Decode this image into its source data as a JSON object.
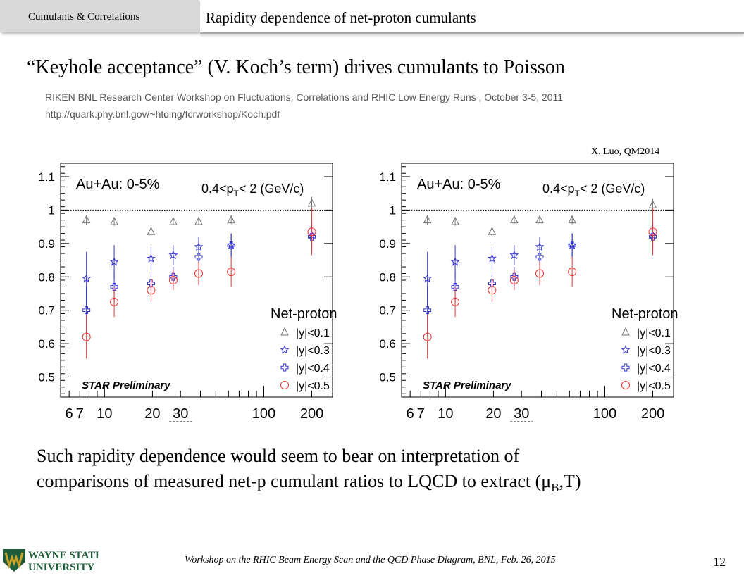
{
  "header": {
    "section_tab": "Cumulants & Correlations",
    "title": "Rapidity dependence of net-proton cumulants"
  },
  "headline": "“Keyhole acceptance” (V. Koch’s term) drives cumulants to Poisson",
  "reference": {
    "line1": "RIKEN BNL Research Center Workshop on Fluctuations, Correlations and RHIC Low Energy Runs , October 3-5, 2011",
    "line2": "http://quark.phy.bnl.gov/~htding/fcrworkshop/Koch.pdf"
  },
  "credit": "X. Luo, QM2014",
  "body_text": {
    "line1": "Such rapidity dependence would seem to bear on interpretation of",
    "line2_prefix": "comparisons of measured net-p cumulant ratios to LQCD to extract (μ",
    "line2_sub": "B",
    "line2_suffix": ",T)"
  },
  "footer": {
    "text": "Workshop on the RHIC Beam Energy Scan and the QCD Phase Diagram, BNL, Feb. 26, 2015",
    "page_number": "12"
  },
  "logo": {
    "line1": "WAYNE STATE",
    "line2": "UNIVERSITY",
    "brand_green": "#1f5c3a",
    "brand_gold": "#c9a227"
  },
  "chart_data": [
    {
      "type": "scatter",
      "x_scale": "log",
      "xlim": [
        5.3,
        270
      ],
      "ylim": [
        0.44,
        1.14
      ],
      "x_ticks": [
        6,
        7,
        10,
        20,
        30,
        100,
        200
      ],
      "x_tick_labels": [
        "6",
        "7",
        "10",
        "20",
        "30",
        "100",
        "200"
      ],
      "y_ticks": [
        0.5,
        0.6,
        0.7,
        0.8,
        0.9,
        1.0,
        1.1
      ],
      "y_tick_labels": [
        "0.5",
        "0.6",
        "0.7",
        "0.8",
        "0.9",
        "1",
        "1.1"
      ],
      "reference_line": 1.0,
      "annotation_left": "Au+Au: 0-5%",
      "annotation_right_base": "0.4<p",
      "annotation_right_sub": "T",
      "annotation_right_tail": "< 2 (GeV/c)",
      "legend_title": "Net-proton",
      "watermark": "STAR Preliminary",
      "legend_position": "bottom-right",
      "series": [
        {
          "name": "|y|<0.1",
          "marker": "triangle",
          "color": "#777777",
          "x": [
            7.7,
            11.5,
            19.6,
            27,
            39,
            62.4,
            200
          ],
          "y": [
            0.97,
            0.965,
            0.935,
            0.965,
            0.965,
            0.97,
            1.02
          ],
          "err": [
            0.015,
            0.012,
            0.012,
            0.01,
            0.01,
            0.012,
            0.02
          ]
        },
        {
          "name": "|y|<0.3",
          "marker": "star",
          "color": "#3333cc",
          "x": [
            7.7,
            11.5,
            19.6,
            27,
            39,
            62.4,
            200
          ],
          "y": [
            0.795,
            0.845,
            0.855,
            0.865,
            0.89,
            0.895,
            0.925
          ],
          "err": [
            0.08,
            0.05,
            0.035,
            0.03,
            0.03,
            0.035,
            0.04
          ]
        },
        {
          "name": "|y|<0.4",
          "marker": "cross",
          "color": "#3333cc",
          "x": [
            7.7,
            11.5,
            19.6,
            27,
            39,
            62.4,
            200
          ],
          "y": [
            0.7,
            0.77,
            0.78,
            0.8,
            0.86,
            0.895,
            0.92
          ],
          "err": [
            0.07,
            0.045,
            0.035,
            0.03,
            0.03,
            0.035,
            0.04
          ]
        },
        {
          "name": "|y|<0.5",
          "marker": "circle",
          "color": "#ee3333",
          "x": [
            7.7,
            11.5,
            19.6,
            27,
            39,
            62.4,
            200
          ],
          "y": [
            0.62,
            0.725,
            0.76,
            0.79,
            0.81,
            0.815,
            0.935
          ],
          "err": [
            0.065,
            0.045,
            0.035,
            0.03,
            0.035,
            0.045,
            0.07
          ]
        }
      ]
    },
    {
      "type": "scatter",
      "x_scale": "log",
      "xlim": [
        5.3,
        270
      ],
      "ylim": [
        0.44,
        1.14
      ],
      "x_ticks": [
        6,
        7,
        10,
        20,
        30,
        100,
        200
      ],
      "x_tick_labels": [
        "6",
        "7",
        "10",
        "20",
        "30",
        "100",
        "200"
      ],
      "y_ticks": [
        0.5,
        0.6,
        0.7,
        0.8,
        0.9,
        1.0,
        1.1
      ],
      "y_tick_labels": [
        "0.5",
        "0.6",
        "0.7",
        "0.8",
        "0.9",
        "1",
        "1.1"
      ],
      "reference_line": 1.0,
      "annotation_left": "Au+Au: 0-5%",
      "annotation_right_base": "0.4<p",
      "annotation_right_sub": "T",
      "annotation_right_tail": "< 2 (GeV/c)",
      "legend_title": "Net-proton",
      "watermark": "STAR Preliminary",
      "legend_position": "bottom-right",
      "series": [
        {
          "name": "|y|<0.1",
          "marker": "triangle",
          "color": "#777777",
          "x": [
            7.7,
            11.5,
            19.6,
            27,
            39,
            62.4,
            200
          ],
          "y": [
            0.97,
            0.965,
            0.935,
            0.97,
            0.97,
            0.97,
            1.015
          ],
          "err": [
            0.015,
            0.012,
            0.012,
            0.01,
            0.01,
            0.012,
            0.02
          ]
        },
        {
          "name": "|y|<0.3",
          "marker": "star",
          "color": "#3333cc",
          "x": [
            7.7,
            11.5,
            19.6,
            27,
            39,
            62.4,
            200
          ],
          "y": [
            0.795,
            0.845,
            0.855,
            0.865,
            0.89,
            0.895,
            0.925
          ],
          "err": [
            0.08,
            0.05,
            0.035,
            0.03,
            0.03,
            0.035,
            0.04
          ]
        },
        {
          "name": "|y|<0.4",
          "marker": "cross",
          "color": "#3333cc",
          "x": [
            7.7,
            11.5,
            19.6,
            27,
            39,
            62.4,
            200
          ],
          "y": [
            0.7,
            0.77,
            0.78,
            0.8,
            0.86,
            0.895,
            0.92
          ],
          "err": [
            0.07,
            0.045,
            0.035,
            0.03,
            0.03,
            0.035,
            0.04
          ]
        },
        {
          "name": "|y|<0.5",
          "marker": "circle",
          "color": "#ee3333",
          "x": [
            7.7,
            11.5,
            19.6,
            27,
            39,
            62.4,
            200
          ],
          "y": [
            0.62,
            0.725,
            0.76,
            0.79,
            0.81,
            0.815,
            0.935
          ],
          "err": [
            0.065,
            0.045,
            0.035,
            0.03,
            0.035,
            0.045,
            0.07
          ]
        }
      ]
    }
  ]
}
